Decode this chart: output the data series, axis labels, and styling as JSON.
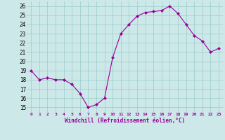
{
  "x": [
    0,
    1,
    2,
    3,
    4,
    5,
    6,
    7,
    8,
    9,
    10,
    11,
    12,
    13,
    14,
    15,
    16,
    17,
    18,
    19,
    20,
    21,
    22,
    23
  ],
  "y": [
    19,
    18,
    18.2,
    18,
    18,
    17.5,
    16.5,
    15,
    15.3,
    16,
    20.4,
    23,
    24,
    24.9,
    25.3,
    25.4,
    25.5,
    26,
    25.2,
    24,
    22.8,
    22.2,
    21,
    21.4
  ],
  "xlabel": "Windchill (Refroidissement éolien,°C)",
  "ylim": [
    14.5,
    26.5
  ],
  "xlim": [
    -0.5,
    23.5
  ],
  "yticks": [
    15,
    16,
    17,
    18,
    19,
    20,
    21,
    22,
    23,
    24,
    25,
    26
  ],
  "xticks": [
    0,
    1,
    2,
    3,
    4,
    5,
    6,
    7,
    8,
    9,
    10,
    11,
    12,
    13,
    14,
    15,
    16,
    17,
    18,
    19,
    20,
    21,
    22,
    23
  ],
  "line_color": "#990099",
  "bg_color": "#cce8e8",
  "grid_color": "#99cccc"
}
